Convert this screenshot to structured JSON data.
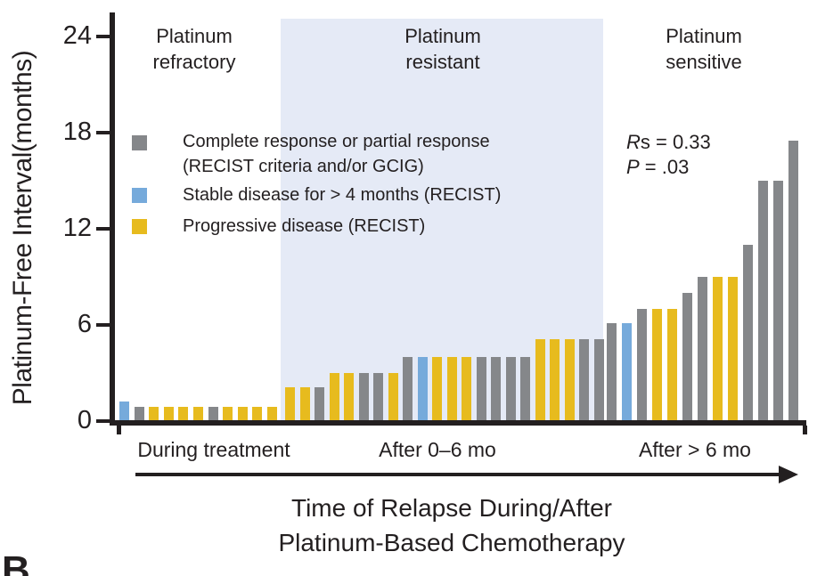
{
  "panel_label": "B",
  "chart_data": {
    "type": "bar",
    "ylabel": "Platinum-Free Interval(months)",
    "xlabel_lines": [
      "Time of Relapse During/After",
      "Platinum-Based Chemotherapy"
    ],
    "ylim": [
      0,
      24
    ],
    "yticks": [
      0,
      6,
      12,
      18,
      24
    ],
    "grid": "off",
    "colors": {
      "gray": "#85878a",
      "blue": "#76aadb",
      "yellow": "#e7bb1e",
      "region_shade": "#e5eaf6",
      "ink": "#231f20"
    },
    "legend": {
      "position": "upper-left-inside",
      "items": [
        {
          "color_key": "gray",
          "lines": [
            "Complete response or partial response",
            "(RECIST criteria and/or GCIG)"
          ]
        },
        {
          "color_key": "blue",
          "lines": [
            "Stable disease for > 4 months (RECIST)"
          ]
        },
        {
          "color_key": "yellow",
          "lines": [
            "Progressive disease (RECIST)"
          ]
        }
      ]
    },
    "stats": {
      "rs_italic": "R",
      "rs_rest": "s = 0.33",
      "p_italic": "P",
      "p_rest": " = .03"
    },
    "groups": [
      {
        "axis_label": "During treatment",
        "region_label": "Platinum refractory",
        "shaded": false,
        "bars": [
          {
            "color": "blue",
            "value": 1.2
          },
          {
            "color": "gray",
            "value": 0.9
          },
          {
            "color": "yellow",
            "value": 0.9
          },
          {
            "color": "yellow",
            "value": 0.9
          },
          {
            "color": "yellow",
            "value": 0.9
          },
          {
            "color": "yellow",
            "value": 0.9
          },
          {
            "color": "gray",
            "value": 0.9
          },
          {
            "color": "yellow",
            "value": 0.9
          },
          {
            "color": "yellow",
            "value": 0.9
          },
          {
            "color": "yellow",
            "value": 0.9
          },
          {
            "color": "yellow",
            "value": 0.9
          }
        ]
      },
      {
        "axis_label": "After 0–6 mo",
        "region_label": "Platinum resistant",
        "shaded": true,
        "bars": [
          {
            "color": "yellow",
            "value": 2.1
          },
          {
            "color": "yellow",
            "value": 2.1
          },
          {
            "color": "gray",
            "value": 2.1
          },
          {
            "color": "yellow",
            "value": 3.0
          },
          {
            "color": "yellow",
            "value": 3.0
          },
          {
            "color": "gray",
            "value": 3.0
          },
          {
            "color": "gray",
            "value": 3.0
          },
          {
            "color": "yellow",
            "value": 3.0
          },
          {
            "color": "gray",
            "value": 4.0
          },
          {
            "color": "blue",
            "value": 4.0
          },
          {
            "color": "yellow",
            "value": 4.0
          },
          {
            "color": "yellow",
            "value": 4.0
          },
          {
            "color": "yellow",
            "value": 4.0
          },
          {
            "color": "gray",
            "value": 4.0
          },
          {
            "color": "gray",
            "value": 4.0
          },
          {
            "color": "gray",
            "value": 4.0
          },
          {
            "color": "gray",
            "value": 4.0
          },
          {
            "color": "yellow",
            "value": 5.1
          },
          {
            "color": "yellow",
            "value": 5.1
          },
          {
            "color": "yellow",
            "value": 5.1
          },
          {
            "color": "gray",
            "value": 5.1
          },
          {
            "color": "gray",
            "value": 5.1
          }
        ]
      },
      {
        "axis_label": "After > 6 mo",
        "region_label": "Platinum sensitive",
        "shaded": false,
        "bars": [
          {
            "color": "gray",
            "value": 6.1
          },
          {
            "color": "blue",
            "value": 6.1
          },
          {
            "color": "gray",
            "value": 7.0
          },
          {
            "color": "yellow",
            "value": 7.0
          },
          {
            "color": "yellow",
            "value": 7.0
          },
          {
            "color": "gray",
            "value": 8.0
          },
          {
            "color": "gray",
            "value": 9.0
          },
          {
            "color": "yellow",
            "value": 9.0
          },
          {
            "color": "yellow",
            "value": 9.0
          },
          {
            "color": "gray",
            "value": 11.0
          },
          {
            "color": "gray",
            "value": 15.0
          },
          {
            "color": "gray",
            "value": 15.0
          },
          {
            "color": "gray",
            "value": 17.5
          }
        ]
      }
    ]
  }
}
